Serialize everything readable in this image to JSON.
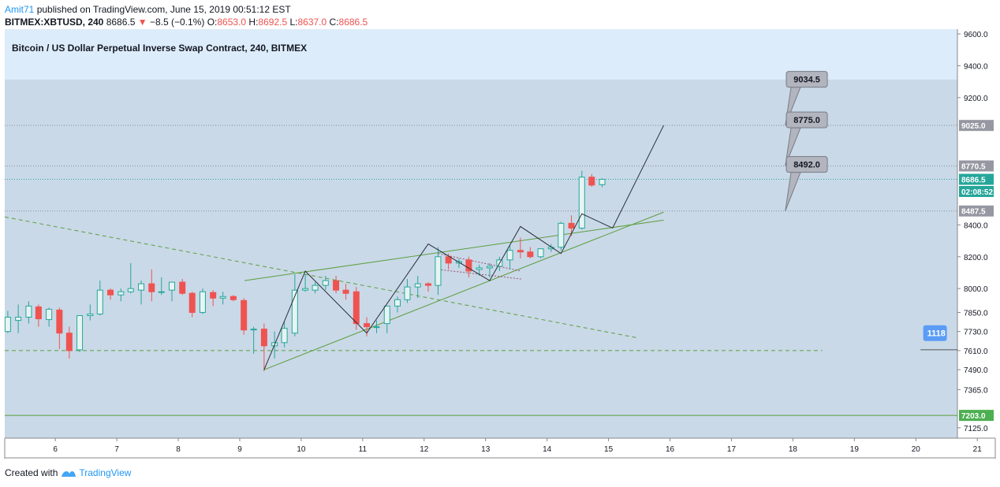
{
  "header": {
    "author": "Amit71",
    "published": "published on TradingView.com, June 15, 2019 00:51:12 EST",
    "symbol": "BITMEX:XBTUSD, 240",
    "last": "8686.5",
    "arrow": "▼",
    "change": "−8.5 (−0.1%)",
    "o_label": "O:",
    "o_value": "8653.0",
    "h_label": "H:",
    "h_value": "8692.5",
    "l_label": "L:",
    "l_value": "8637.0",
    "c_label": "C:",
    "c_value": "8686.5"
  },
  "footer": {
    "created": "Created with",
    "brand": "TradingView",
    "logo_icon": "tradingview-logo-icon"
  },
  "chart_data": {
    "type": "candlestick",
    "title": "Bitcoin / US Dollar Perpetual Inverse Swap Contract, 240, BITMEX",
    "colors": {
      "up": "#26a69a",
      "down": "#ef5350",
      "plot_bg": "#c9d9e8",
      "top_bg": "#ddecfa",
      "pattern": "#5c9e3c"
    },
    "y_ticks": [
      9600.0,
      9400.0,
      9200.0,
      9025.0,
      8770.5,
      8686.5,
      8487.5,
      8400.0,
      8200.0,
      8000.0,
      7850.0,
      7730.0,
      7610.0,
      7490.0,
      7365.0,
      7203.0,
      7125.0
    ],
    "y_tick_labels": [
      "9600.0",
      "9400.0",
      "9200.0",
      "9025.0",
      "8770.5",
      "8686.5",
      "8487.5",
      "8400.0",
      "8200.0",
      "8000.0",
      "7850.0",
      "7730.0",
      "7610.0",
      "7490.0",
      "7365.0",
      "7203.0",
      "7125.0"
    ],
    "x_tick_labels": [
      "6",
      "7",
      "8",
      "9",
      "10",
      "11",
      "12",
      "13",
      "14",
      "15",
      "16",
      "17",
      "18",
      "19",
      "20",
      "21"
    ],
    "x_ticks": [
      6,
      7,
      8,
      9,
      10,
      11,
      12,
      13,
      14,
      15,
      16,
      17,
      18,
      19,
      20,
      21
    ],
    "xlim": [
      5.6,
      21.1
    ],
    "ylim": [
      7060,
      9630
    ],
    "highlight_labels": [
      {
        "label": "9025.0",
        "y": 9025.0,
        "color": "#9598a1"
      },
      {
        "label": "8770.5",
        "y": 8770.5,
        "color": "#9598a1"
      },
      {
        "label": "8686.5",
        "y": 8686.5,
        "color": "#26a69a"
      },
      {
        "label": "02:08:52",
        "y": 8610.0,
        "color": "#26a69a"
      },
      {
        "label": "8487.5",
        "y": 8487.5,
        "color": "#9598a1"
      },
      {
        "label": "7203.0",
        "y": 7203.0,
        "color": "#4caf50"
      }
    ],
    "horizontal_levels": [
      {
        "y": 9025.0,
        "style": "dotted",
        "color": "#8a8a99"
      },
      {
        "y": 8770.5,
        "style": "dotted",
        "color": "#8a8a99"
      },
      {
        "y": 8686.5,
        "style": "dotted",
        "color": "#26a69a"
      },
      {
        "y": 8487.5,
        "style": "dotted",
        "color": "#8a8a99"
      },
      {
        "y": 7610.0,
        "style": "dashed",
        "color": "#5c9e3c",
        "x_from": 5.6,
        "x_to": 18.9
      },
      {
        "y": 7203.0,
        "style": "solid",
        "color": "#5c9e3c"
      }
    ],
    "callouts": [
      {
        "label": "9034.5",
        "x": 18.65,
        "y": 9315,
        "anchor_x": 18.3,
        "anchor_y": 9025.0
      },
      {
        "label": "8775.0",
        "x": 18.65,
        "y": 9060,
        "anchor_x": 18.3,
        "anchor_y": 8770.5
      },
      {
        "label": "8492.0",
        "x": 18.65,
        "y": 8780,
        "anchor_x": 18.3,
        "anchor_y": 8487.5
      }
    ],
    "side_tag": {
      "label": "1118",
      "x": 20.8,
      "y": 7720
    },
    "side_line": {
      "x1": 20.5,
      "x2": 21.1,
      "y": 7615
    },
    "candles": [
      {
        "x": 5.65,
        "o": 7730,
        "h": 7860,
        "l": 7720,
        "c": 7820
      },
      {
        "x": 5.82,
        "o": 7800,
        "h": 7900,
        "l": 7720,
        "c": 7820
      },
      {
        "x": 5.99,
        "o": 7820,
        "h": 7920,
        "l": 7780,
        "c": 7890
      },
      {
        "x": 6.15,
        "o": 7885,
        "h": 7900,
        "l": 7760,
        "c": 7810
      },
      {
        "x": 6.32,
        "o": 7805,
        "h": 7880,
        "l": 7760,
        "c": 7870
      },
      {
        "x": 6.49,
        "o": 7865,
        "h": 7880,
        "l": 7620,
        "c": 7720
      },
      {
        "x": 6.65,
        "o": 7720,
        "h": 7760,
        "l": 7560,
        "c": 7610
      },
      {
        "x": 6.82,
        "o": 7615,
        "h": 7810,
        "l": 7600,
        "c": 7830
      },
      {
        "x": 6.99,
        "o": 7830,
        "h": 7900,
        "l": 7800,
        "c": 7840
      },
      {
        "x": 7.15,
        "o": 7840,
        "h": 8050,
        "l": 7830,
        "c": 7990
      },
      {
        "x": 7.32,
        "o": 7990,
        "h": 8000,
        "l": 7930,
        "c": 7960
      },
      {
        "x": 7.49,
        "o": 7960,
        "h": 8000,
        "l": 7920,
        "c": 7980
      },
      {
        "x": 7.65,
        "o": 7980,
        "h": 8160,
        "l": 7970,
        "c": 8000
      },
      {
        "x": 7.82,
        "o": 7990,
        "h": 8050,
        "l": 7900,
        "c": 8030
      },
      {
        "x": 7.99,
        "o": 8030,
        "h": 8120,
        "l": 7920,
        "c": 7980
      },
      {
        "x": 8.15,
        "o": 7980,
        "h": 8070,
        "l": 7960,
        "c": 7980
      },
      {
        "x": 8.32,
        "o": 7990,
        "h": 8040,
        "l": 7920,
        "c": 8040
      },
      {
        "x": 8.49,
        "o": 8040,
        "h": 8060,
        "l": 7960,
        "c": 7970
      },
      {
        "x": 8.65,
        "o": 7970,
        "h": 7980,
        "l": 7820,
        "c": 7850
      },
      {
        "x": 8.82,
        "o": 7850,
        "h": 8000,
        "l": 7840,
        "c": 7980
      },
      {
        "x": 8.99,
        "o": 7975,
        "h": 7990,
        "l": 7890,
        "c": 7940
      },
      {
        "x": 9.15,
        "o": 7940,
        "h": 7980,
        "l": 7900,
        "c": 7950
      },
      {
        "x": 9.32,
        "o": 7950,
        "h": 7960,
        "l": 7920,
        "c": 7930
      },
      {
        "x": 9.49,
        "o": 7925,
        "h": 7940,
        "l": 7710,
        "c": 7740
      },
      {
        "x": 9.65,
        "o": 7740,
        "h": 7760,
        "l": 7590,
        "c": 7745
      },
      {
        "x": 9.82,
        "o": 7745,
        "h": 7780,
        "l": 7480,
        "c": 7640
      },
      {
        "x": 9.99,
        "o": 7640,
        "h": 7730,
        "l": 7560,
        "c": 7660
      },
      {
        "x": 10.15,
        "o": 7660,
        "h": 7790,
        "l": 7630,
        "c": 7750
      },
      {
        "x": 10.32,
        "o": 7720,
        "h": 8090,
        "l": 7700,
        "c": 7990
      },
      {
        "x": 10.49,
        "o": 7990,
        "h": 8090,
        "l": 7980,
        "c": 8000
      },
      {
        "x": 10.65,
        "o": 7990,
        "h": 8040,
        "l": 7970,
        "c": 8020
      },
      {
        "x": 10.82,
        "o": 8020,
        "h": 8080,
        "l": 7990,
        "c": 8050
      },
      {
        "x": 10.99,
        "o": 8050,
        "h": 8080,
        "l": 7970,
        "c": 7990
      },
      {
        "x": 11.15,
        "o": 7990,
        "h": 8030,
        "l": 7930,
        "c": 7970
      },
      {
        "x": 11.32,
        "o": 7980,
        "h": 8010,
        "l": 7740,
        "c": 7780
      },
      {
        "x": 11.49,
        "o": 7780,
        "h": 7820,
        "l": 7700,
        "c": 7760
      },
      {
        "x": 11.65,
        "o": 7760,
        "h": 7800,
        "l": 7720,
        "c": 7760
      },
      {
        "x": 11.82,
        "o": 7780,
        "h": 7890,
        "l": 7720,
        "c": 7890
      },
      {
        "x": 11.99,
        "o": 7890,
        "h": 7950,
        "l": 7850,
        "c": 7930
      },
      {
        "x": 12.15,
        "o": 7930,
        "h": 8060,
        "l": 7910,
        "c": 8010
      },
      {
        "x": 12.32,
        "o": 8010,
        "h": 8080,
        "l": 7940,
        "c": 8030
      },
      {
        "x": 12.49,
        "o": 8030,
        "h": 8040,
        "l": 7980,
        "c": 8020
      },
      {
        "x": 12.65,
        "o": 8020,
        "h": 8260,
        "l": 7960,
        "c": 8200
      },
      {
        "x": 12.82,
        "o": 8200,
        "h": 8220,
        "l": 8120,
        "c": 8160
      },
      {
        "x": 12.99,
        "o": 8160,
        "h": 8190,
        "l": 8130,
        "c": 8170
      },
      {
        "x": 13.15,
        "o": 8180,
        "h": 8200,
        "l": 8070,
        "c": 8110
      },
      {
        "x": 13.32,
        "o": 8120,
        "h": 8150,
        "l": 8080,
        "c": 8130
      },
      {
        "x": 13.49,
        "o": 8130,
        "h": 8160,
        "l": 8070,
        "c": 8140
      },
      {
        "x": 13.65,
        "o": 8140,
        "h": 8200,
        "l": 8110,
        "c": 8180
      },
      {
        "x": 13.82,
        "o": 8180,
        "h": 8270,
        "l": 8120,
        "c": 8240
      },
      {
        "x": 13.99,
        "o": 8240,
        "h": 8320,
        "l": 8190,
        "c": 8230
      },
      {
        "x": 14.15,
        "o": 8230,
        "h": 8260,
        "l": 8190,
        "c": 8200
      },
      {
        "x": 14.32,
        "o": 8200,
        "h": 8250,
        "l": 8190,
        "c": 8250
      },
      {
        "x": 14.49,
        "o": 8250,
        "h": 8280,
        "l": 8230,
        "c": 8260
      },
      {
        "x": 14.65,
        "o": 8260,
        "h": 8420,
        "l": 8240,
        "c": 8410
      },
      {
        "x": 14.82,
        "o": 8410,
        "h": 8460,
        "l": 8330,
        "c": 8380
      },
      {
        "x": 14.99,
        "o": 8380,
        "h": 8740,
        "l": 8370,
        "c": 8700
      },
      {
        "x": 15.15,
        "o": 8700,
        "h": 8720,
        "l": 8640,
        "c": 8650
      },
      {
        "x": 15.32,
        "o": 8653,
        "h": 8692.5,
        "l": 8637,
        "c": 8686.5
      }
    ],
    "zigzag": [
      [
        9.82,
        7490
      ],
      [
        10.49,
        8110
      ],
      [
        11.49,
        7720
      ],
      [
        12.49,
        8280
      ],
      [
        13.49,
        8050
      ],
      [
        13.99,
        8390
      ],
      [
        14.65,
        8220
      ],
      [
        14.99,
        8470
      ],
      [
        15.49,
        8380
      ],
      [
        16.32,
        9025
      ]
    ],
    "wedge_upper": [
      [
        9.5,
        8050
      ],
      [
        16.32,
        8430
      ]
    ],
    "wedge_lower": [
      [
        9.82,
        7490
      ],
      [
        16.32,
        8480
      ]
    ],
    "downtrend": [
      [
        5.6,
        8450
      ],
      [
        15.9,
        7690
      ]
    ],
    "flag_upper": [
      [
        12.65,
        8220
      ],
      [
        14.0,
        8110
      ]
    ],
    "flag_lower": [
      [
        12.65,
        8120
      ],
      [
        14.0,
        8060
      ]
    ]
  }
}
